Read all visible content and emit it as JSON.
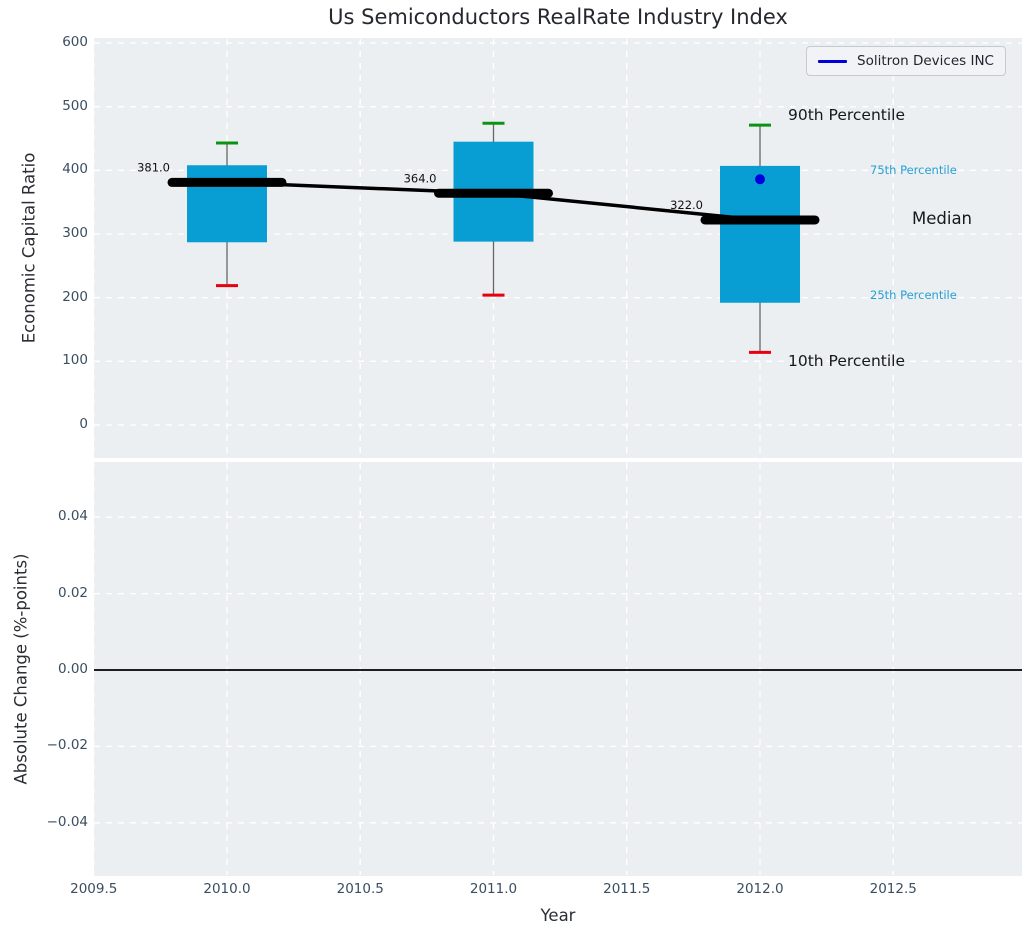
{
  "chart_data": {
    "type": "boxplot-timeseries",
    "title": "Us Semiconductors RealRate Industry Index",
    "xlabel": "Year",
    "panels": [
      {
        "ylabel": "Economic Capital Ratio",
        "ytick_labels": [
          "0",
          "100",
          "200",
          "300",
          "400",
          "500",
          "600"
        ],
        "ytick_values": [
          0,
          100,
          200,
          300,
          400,
          500,
          600
        ],
        "ylim": [
          -52,
          608
        ],
        "grid": true
      },
      {
        "ylabel": "Absolute Change (%-points)",
        "ytick_labels": [
          "−0.04",
          "−0.02",
          "0.00",
          "0.02",
          "0.04"
        ],
        "ytick_values": [
          -0.04,
          -0.02,
          0.0,
          0.02,
          0.04
        ],
        "ylim": [
          -0.054,
          0.054
        ],
        "grid": true,
        "zero_line": true,
        "series": []
      }
    ],
    "xtick_labels": [
      "2009.5",
      "2010.0",
      "2010.5",
      "2011.0",
      "2011.5",
      "2012.0",
      "2012.5"
    ],
    "xtick_values": [
      2009.5,
      2010.0,
      2010.5,
      2011.0,
      2011.5,
      2012.0,
      2012.5
    ],
    "xlim": [
      2009.5,
      2012.98
    ],
    "boxes": {
      "years": [
        2010,
        2011,
        2012
      ],
      "p90": [
        443,
        474,
        471
      ],
      "p75": [
        408,
        445,
        407
      ],
      "median": [
        381,
        364,
        322
      ],
      "p25": [
        287,
        288,
        192
      ],
      "p10": [
        219,
        204,
        114
      ],
      "median_labels": [
        "381.0",
        "364.0",
        "322.0"
      ]
    },
    "company_point": {
      "name": "Solitron Devices INC",
      "year": 2012,
      "value": 386
    },
    "legend": {
      "label": "Solitron Devices INC",
      "position": "upper right"
    },
    "annotations": {
      "p90": "90th Percentile",
      "p75": "75th Percentile",
      "median": "Median",
      "p25": "25th Percentile",
      "p10": "10th Percentile"
    },
    "colors": {
      "box_fill": "#089ed4",
      "cap_high": "#0a9412",
      "cap_low": "#e8000d",
      "whisker": "#666666",
      "median_line": "#000000",
      "company_dot": "#0000dd",
      "percentile_label_blue": "#25a0d4",
      "panel_bg": "#eceff1",
      "grid": "#ffffff",
      "tick_text": "#3b4e61",
      "zero_line": "#000000"
    }
  }
}
